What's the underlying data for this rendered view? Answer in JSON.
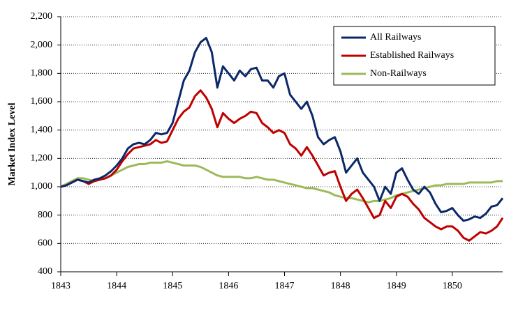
{
  "chart_data": {
    "type": "line",
    "y_label": "Market Index Level",
    "x": [
      1843,
      1843.1,
      1843.2,
      1843.3,
      1843.4,
      1843.5,
      1843.6,
      1843.7,
      1843.8,
      1843.9,
      1844,
      1844.1,
      1844.2,
      1844.3,
      1844.4,
      1844.5,
      1844.6,
      1844.7,
      1844.8,
      1844.9,
      1845,
      1845.1,
      1845.2,
      1845.3,
      1845.4,
      1845.5,
      1845.6,
      1845.7,
      1845.8,
      1845.9,
      1846,
      1846.1,
      1846.2,
      1846.3,
      1846.4,
      1846.5,
      1846.6,
      1846.7,
      1846.8,
      1846.9,
      1847,
      1847.1,
      1847.2,
      1847.3,
      1847.4,
      1847.5,
      1847.6,
      1847.7,
      1847.8,
      1847.9,
      1848,
      1848.1,
      1848.2,
      1848.3,
      1848.4,
      1848.5,
      1848.6,
      1848.7,
      1848.8,
      1848.9,
      1849,
      1849.1,
      1849.2,
      1849.3,
      1849.4,
      1849.5,
      1849.6,
      1849.7,
      1849.8,
      1849.9,
      1850,
      1850.1,
      1850.2,
      1850.3,
      1850.4,
      1850.5,
      1850.6,
      1850.7,
      1850.8,
      1850.9
    ],
    "series": [
      {
        "name": "All Railways",
        "color": "#0b2868",
        "values": [
          1000,
          1010,
          1030,
          1050,
          1040,
          1030,
          1050,
          1060,
          1080,
          1110,
          1150,
          1200,
          1270,
          1300,
          1310,
          1300,
          1330,
          1380,
          1370,
          1380,
          1450,
          1600,
          1750,
          1820,
          1950,
          2020,
          2050,
          1950,
          1700,
          1850,
          1800,
          1750,
          1820,
          1780,
          1830,
          1840,
          1750,
          1750,
          1700,
          1780,
          1800,
          1650,
          1600,
          1550,
          1600,
          1500,
          1350,
          1300,
          1330,
          1350,
          1250,
          1100,
          1150,
          1200,
          1100,
          1050,
          1000,
          900,
          1000,
          950,
          1100,
          1130,
          1050,
          980,
          950,
          1000,
          960,
          880,
          820,
          830,
          850,
          800,
          760,
          770,
          790,
          780,
          810,
          860,
          870,
          920
        ]
      },
      {
        "name": "Established Railways",
        "color": "#c00000",
        "values": [
          1000,
          1010,
          1030,
          1050,
          1040,
          1020,
          1040,
          1050,
          1060,
          1080,
          1120,
          1180,
          1230,
          1270,
          1280,
          1290,
          1300,
          1330,
          1310,
          1320,
          1400,
          1480,
          1530,
          1560,
          1640,
          1680,
          1630,
          1550,
          1420,
          1520,
          1480,
          1450,
          1480,
          1500,
          1530,
          1520,
          1450,
          1420,
          1380,
          1400,
          1380,
          1300,
          1270,
          1220,
          1280,
          1220,
          1150,
          1080,
          1100,
          1110,
          1000,
          900,
          950,
          980,
          920,
          850,
          780,
          800,
          900,
          850,
          930,
          950,
          930,
          880,
          840,
          780,
          750,
          720,
          700,
          720,
          720,
          690,
          640,
          620,
          650,
          680,
          670,
          690,
          720,
          780
        ]
      },
      {
        "name": "Non-Railways",
        "color": "#9bbb59",
        "values": [
          1000,
          1020,
          1040,
          1060,
          1060,
          1050,
          1040,
          1050,
          1060,
          1080,
          1100,
          1120,
          1140,
          1150,
          1160,
          1160,
          1170,
          1170,
          1170,
          1180,
          1170,
          1160,
          1150,
          1150,
          1150,
          1140,
          1120,
          1100,
          1080,
          1070,
          1070,
          1070,
          1070,
          1060,
          1060,
          1070,
          1060,
          1050,
          1050,
          1040,
          1030,
          1020,
          1010,
          1000,
          990,
          990,
          980,
          970,
          960,
          940,
          930,
          920,
          920,
          910,
          900,
          890,
          900,
          900,
          910,
          920,
          940,
          950,
          960,
          970,
          980,
          990,
          1000,
          1010,
          1010,
          1020,
          1020,
          1020,
          1020,
          1030,
          1030,
          1030,
          1030,
          1030,
          1040,
          1040
        ]
      }
    ],
    "xlim": [
      1843,
      1850.9
    ],
    "xticks": [
      1843,
      1844,
      1845,
      1846,
      1847,
      1848,
      1849,
      1850
    ],
    "ylim": [
      400,
      2200
    ],
    "yticks": [
      400,
      600,
      800,
      {
        "value": 1000,
        "label": "1,000"
      },
      {
        "value": 1200,
        "label": "1,200"
      },
      {
        "value": 1400,
        "label": "1,400"
      },
      {
        "value": 1600,
        "label": "1,600"
      },
      {
        "value": 1800,
        "label": "1,800"
      },
      {
        "value": 2000,
        "label": "2,000"
      },
      {
        "value": 2200,
        "label": "2,200"
      }
    ],
    "grid": true,
    "legend": "top-right"
  }
}
